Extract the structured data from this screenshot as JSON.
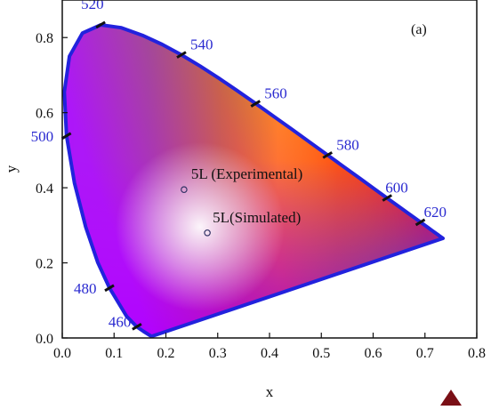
{
  "chart_data": {
    "type": "scatter",
    "title": "",
    "panel_label": "(a)",
    "xlabel": "x",
    "ylabel": "y",
    "xlim": [
      0.0,
      0.8
    ],
    "ylim": [
      0.0,
      0.9
    ],
    "x_ticks": [
      "0.0",
      "0.1",
      "0.2",
      "0.3",
      "0.4",
      "0.5",
      "0.6",
      "0.7",
      "0.8"
    ],
    "y_ticks": [
      "0.0",
      "0.2",
      "0.4",
      "0.6",
      "0.8"
    ],
    "grid": false,
    "locus_color": "#2222dd",
    "label_color": "#2a2ad0",
    "wavelength_labels": [
      {
        "text": "460",
        "x": 0.144,
        "y": 0.03
      },
      {
        "text": "480",
        "x": 0.091,
        "y": 0.133
      },
      {
        "text": "500",
        "x": 0.008,
        "y": 0.538
      },
      {
        "text": "520",
        "x": 0.074,
        "y": 0.834
      },
      {
        "text": "540",
        "x": 0.23,
        "y": 0.754
      },
      {
        "text": "560",
        "x": 0.373,
        "y": 0.624
      },
      {
        "text": "580",
        "x": 0.512,
        "y": 0.487
      },
      {
        "text": "600",
        "x": 0.627,
        "y": 0.373
      },
      {
        "text": "620",
        "x": 0.691,
        "y": 0.308
      }
    ],
    "points": [
      {
        "label": "5L (Experimental)",
        "x": 0.235,
        "y": 0.395
      },
      {
        "label": "5L(Simulated)",
        "x": 0.28,
        "y": 0.28
      }
    ]
  }
}
